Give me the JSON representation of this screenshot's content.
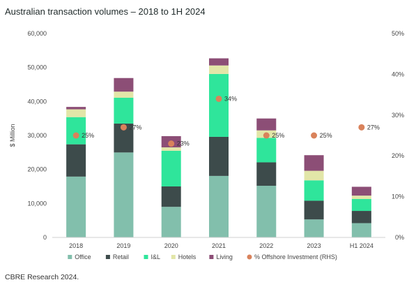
{
  "title": "Australian transaction volumes – 2018 to 1H 2024",
  "source": "CBRE Research 2024.",
  "chart_data": {
    "type": "bar",
    "stacked": true,
    "categories": [
      "2018",
      "2019",
      "2020",
      "2021",
      "2022",
      "2023",
      "H1 2024"
    ],
    "ylabel": "$ Million",
    "ylim": [
      0,
      60000
    ],
    "yticks": [
      "0",
      "10,000",
      "20,000",
      "30,000",
      "40,000",
      "50,000",
      "60,000"
    ],
    "y2lim": [
      0,
      50
    ],
    "y2ticks": [
      "0%",
      "10%",
      "20%",
      "30%",
      "40%",
      "50%"
    ],
    "grid": false,
    "legend_position": "bottom",
    "series": [
      {
        "name": "Office",
        "color": "#82bfac",
        "values": [
          17900,
          25000,
          9000,
          18100,
          15200,
          5300,
          4200
        ]
      },
      {
        "name": "Retail",
        "color": "#3d4b4b",
        "values": [
          9500,
          8500,
          6000,
          11500,
          6900,
          5500,
          3600
        ]
      },
      {
        "name": "I&L",
        "color": "#2fe59b",
        "values": [
          8000,
          7600,
          10500,
          18500,
          7200,
          6000,
          3500
        ]
      },
      {
        "name": "Hotels",
        "color": "#e2e6a8",
        "values": [
          2300,
          1800,
          1000,
          2500,
          2200,
          2800,
          1000
        ]
      },
      {
        "name": "Living",
        "color": "#8c4e76",
        "values": [
          700,
          4000,
          3300,
          2100,
          3500,
          4600,
          2600
        ]
      }
    ],
    "line_series": {
      "name": "% Offshore Investment (RHS)",
      "color": "#d9825b",
      "axis": "right",
      "values": [
        25,
        27,
        23,
        34,
        25,
        25,
        27
      ],
      "labels": [
        "25%",
        "27%",
        "23%",
        "34%",
        "25%",
        "25%",
        "27%"
      ]
    }
  }
}
